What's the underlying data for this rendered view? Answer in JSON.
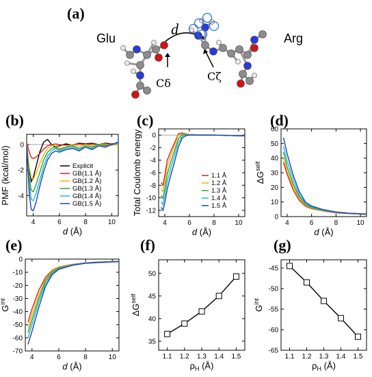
{
  "colors": {
    "explicit": "#000000",
    "r1.1": "#e41a1c",
    "r1.2": "#f0b400",
    "r1.3": "#2ca02c",
    "r1.4": "#17becf",
    "r1.5": "#1f3fbf"
  },
  "panels": {
    "a": {
      "label": "(a)",
      "left_residue": "Glu",
      "right_residue": "Arg",
      "distance_symbol": "d",
      "left_atom": "Cδ",
      "right_atom": "Cζ"
    },
    "b": {
      "label": "(b)"
    },
    "c": {
      "label": "(c)"
    },
    "d": {
      "label": "(d)"
    },
    "e": {
      "label": "(e)"
    },
    "f": {
      "label": "(f)"
    },
    "g": {
      "label": "(g)"
    }
  },
  "chart_data": [
    {
      "id": "b",
      "type": "line",
      "xlabel": "d (Å)",
      "ylabel": "PMF (kcal/mol)",
      "xlim": [
        3.5,
        10.5
      ],
      "ylim": [
        -5.6,
        0.8
      ],
      "xticks": [
        4,
        6,
        8,
        10
      ],
      "yticks": [
        0,
        -2,
        -4
      ],
      "hline": 0,
      "legend_position": "lower-right",
      "series": [
        {
          "name": "Explicit",
          "color_key": "explicit",
          "x": [
            3.5,
            3.7,
            3.85,
            4.0,
            4.2,
            4.5,
            4.8,
            5.1,
            5.4,
            5.7,
            6.0,
            6.5,
            7.0,
            7.5,
            8.0,
            8.5,
            9.0,
            9.5,
            10.0,
            10.5
          ],
          "y": [
            0.0,
            -2.0,
            -2.9,
            -2.6,
            -1.8,
            -0.6,
            0.2,
            0.4,
            0.0,
            -0.2,
            -0.1,
            0.05,
            -0.05,
            0.1,
            0.05,
            0.1,
            0.0,
            0.1,
            0.05,
            0.1
          ]
        },
        {
          "name": "GB(1.1 Å)",
          "color_key": "r1.1",
          "x": [
            3.5,
            3.7,
            3.85,
            4.0,
            4.2,
            4.5,
            4.8,
            5.1,
            5.4,
            5.7,
            6.0,
            6.5,
            7.0,
            7.5,
            8.0,
            8.5,
            9.0,
            9.5,
            10.0,
            10.5
          ],
          "y": [
            0.2,
            -0.6,
            -1.0,
            -1.1,
            -1.0,
            -0.7,
            -0.35,
            -0.1,
            0.0,
            0.05,
            0.0,
            -0.05,
            0.0,
            0.05,
            0.0,
            0.05,
            0.0,
            0.0,
            0.05,
            0.0
          ]
        },
        {
          "name": "GB(1.2 Å)",
          "color_key": "r1.2",
          "x": [
            3.5,
            3.7,
            3.85,
            4.0,
            4.2,
            4.5,
            4.8,
            5.1,
            5.4,
            5.7,
            6.0,
            6.5,
            7.0,
            7.5,
            8.0,
            8.5,
            9.0,
            9.5,
            10.0,
            10.5
          ],
          "y": [
            0.1,
            -1.8,
            -2.6,
            -2.7,
            -2.3,
            -1.5,
            -0.8,
            -0.3,
            -0.1,
            0.0,
            -0.3,
            -0.2,
            0.0,
            -0.15,
            0.0,
            -0.1,
            0.0,
            0.05,
            -0.05,
            0.0
          ]
        },
        {
          "name": "GB(1.3 Å)",
          "color_key": "r1.3",
          "x": [
            3.5,
            3.7,
            3.85,
            4.0,
            4.2,
            4.5,
            4.8,
            5.1,
            5.4,
            5.7,
            6.0,
            6.5,
            7.0,
            7.5,
            8.0,
            8.5,
            9.0,
            9.5,
            10.0,
            10.5
          ],
          "y": [
            0.0,
            -2.6,
            -3.6,
            -3.7,
            -3.2,
            -2.2,
            -1.2,
            -0.6,
            -0.3,
            -0.2,
            -0.4,
            -0.2,
            -0.1,
            -0.3,
            -0.1,
            -0.2,
            0.0,
            -0.1,
            0.0,
            0.1
          ]
        },
        {
          "name": "GB(1.4 Å)",
          "color_key": "r1.4",
          "x": [
            3.5,
            3.7,
            3.85,
            4.0,
            4.2,
            4.5,
            4.8,
            5.1,
            5.4,
            5.7,
            6.0,
            6.5,
            7.0,
            7.5,
            8.0,
            8.5,
            9.0,
            9.5,
            10.0,
            10.5
          ],
          "y": [
            0.0,
            -3.2,
            -4.3,
            -4.4,
            -3.9,
            -2.8,
            -1.7,
            -0.9,
            -0.5,
            -0.3,
            -0.5,
            -0.3,
            -0.2,
            -0.4,
            -0.2,
            -0.3,
            -0.1,
            -0.2,
            0.0,
            0.1
          ]
        },
        {
          "name": "GB(1.5 Å)",
          "color_key": "r1.5",
          "x": [
            3.5,
            3.7,
            3.85,
            4.0,
            4.2,
            4.5,
            4.8,
            5.1,
            5.4,
            5.7,
            6.0,
            6.5,
            7.0,
            7.5,
            8.0,
            8.5,
            9.0,
            9.5,
            10.0,
            10.5
          ],
          "y": [
            0.0,
            -3.9,
            -5.1,
            -5.2,
            -4.6,
            -3.3,
            -2.1,
            -1.2,
            -0.7,
            -0.5,
            -0.6,
            -0.4,
            -0.3,
            -0.5,
            -0.2,
            -0.4,
            -0.1,
            -0.2,
            0.0,
            0.2
          ]
        }
      ]
    },
    {
      "id": "c",
      "type": "line",
      "xlabel": "d (Å)",
      "ylabel": "Total Coulomb energy",
      "xlim": [
        3.5,
        10.5
      ],
      "ylim": [
        -13,
        1
      ],
      "xticks": [
        4,
        6,
        8,
        10
      ],
      "yticks": [
        0,
        -2,
        -4,
        -6,
        -8,
        -10,
        -12
      ],
      "hline": 0,
      "legend_position": "lower-right",
      "series": [
        {
          "name": "1.1 Å",
          "color_key": "r1.1",
          "x": [
            3.7,
            3.85,
            4.0,
            4.2,
            4.5,
            4.8,
            5.1,
            5.4,
            5.7,
            6.0,
            7.0,
            8.0,
            9.0,
            10.0,
            10.5
          ],
          "y": [
            -7.6,
            -8.0,
            -6.4,
            -4.0,
            -2.5,
            -1.2,
            0.2,
            0.35,
            0.2,
            0.1,
            0.0,
            0.0,
            -0.05,
            -0.1,
            -0.1
          ]
        },
        {
          "name": "1.2 Å",
          "color_key": "r1.2",
          "x": [
            3.7,
            3.85,
            4.0,
            4.2,
            4.5,
            4.8,
            5.1,
            5.4,
            5.7,
            6.0,
            7.0,
            8.0,
            9.0,
            10.0,
            10.5
          ],
          "y": [
            -8.6,
            -9.0,
            -7.4,
            -5.0,
            -3.2,
            -1.6,
            0.0,
            0.25,
            0.15,
            0.1,
            0.0,
            0.0,
            -0.05,
            -0.1,
            -0.1
          ]
        },
        {
          "name": "1.3 Å",
          "color_key": "r1.3",
          "x": [
            3.7,
            3.85,
            4.0,
            4.2,
            4.5,
            4.8,
            5.1,
            5.4,
            5.7,
            6.0,
            7.0,
            8.0,
            9.0,
            10.0,
            10.5
          ],
          "y": [
            -9.6,
            -10.1,
            -8.6,
            -6.2,
            -4.2,
            -2.4,
            -0.6,
            0.1,
            0.1,
            0.05,
            0.0,
            0.0,
            -0.05,
            -0.1,
            -0.1
          ]
        },
        {
          "name": "1.4 Å",
          "color_key": "r1.4",
          "x": [
            3.7,
            3.85,
            4.0,
            4.2,
            4.5,
            4.8,
            5.1,
            5.4,
            5.7,
            6.0,
            7.0,
            8.0,
            9.0,
            10.0,
            10.5
          ],
          "y": [
            -10.6,
            -11.1,
            -9.7,
            -7.4,
            -5.2,
            -3.2,
            -1.2,
            -0.2,
            0.0,
            0.0,
            0.0,
            0.0,
            -0.05,
            -0.1,
            -0.1
          ]
        },
        {
          "name": "1.5 Å",
          "color_key": "r1.5",
          "x": [
            3.7,
            3.85,
            4.0,
            4.2,
            4.5,
            4.8,
            5.1,
            5.4,
            5.7,
            6.0,
            7.0,
            8.0,
            9.0,
            10.0,
            10.5
          ],
          "y": [
            -11.5,
            -12.0,
            -10.8,
            -8.6,
            -6.3,
            -4.2,
            -1.9,
            -0.5,
            -0.1,
            0.0,
            0.0,
            0.0,
            -0.05,
            -0.1,
            -0.1
          ]
        }
      ]
    },
    {
      "id": "d",
      "type": "line",
      "xlabel": "d (Å)",
      "ylabel": "ΔG^self",
      "xlim": [
        3.5,
        10.5
      ],
      "ylim": [
        0,
        60
      ],
      "xticks": [
        4,
        6,
        8,
        10
      ],
      "yticks": [
        0,
        10,
        20,
        30,
        40,
        50,
        60
      ],
      "series": [
        {
          "name": "1.1 Å",
          "color_key": "r1.1",
          "x": [
            3.7,
            4.0,
            4.5,
            5.0,
            5.5,
            6.0,
            7.0,
            8.0,
            9.0,
            10.0,
            10.5
          ],
          "y": [
            37.0,
            29.0,
            18.0,
            11.0,
            7.0,
            5.5,
            3.8,
            2.6,
            2.0,
            1.6,
            1.4
          ]
        },
        {
          "name": "1.2 Å",
          "color_key": "r1.2",
          "x": [
            3.7,
            4.0,
            4.5,
            5.0,
            5.5,
            6.0,
            7.0,
            8.0,
            9.0,
            10.0,
            10.5
          ],
          "y": [
            40.0,
            31.0,
            20.0,
            12.0,
            7.5,
            5.8,
            4.0,
            2.8,
            2.1,
            1.7,
            1.5
          ]
        },
        {
          "name": "1.3 Å",
          "color_key": "r1.3",
          "x": [
            3.7,
            4.0,
            4.5,
            5.0,
            5.5,
            6.0,
            7.0,
            8.0,
            9.0,
            10.0,
            10.5
          ],
          "y": [
            44.0,
            34.0,
            22.0,
            13.5,
            8.2,
            6.2,
            4.2,
            2.9,
            2.2,
            1.8,
            1.6
          ]
        },
        {
          "name": "1.4 Å",
          "color_key": "r1.4",
          "x": [
            3.7,
            4.0,
            4.5,
            5.0,
            5.5,
            6.0,
            7.0,
            8.0,
            9.0,
            10.0,
            10.5
          ],
          "y": [
            48.0,
            38.0,
            25.0,
            15.0,
            9.0,
            6.6,
            4.4,
            3.0,
            2.3,
            1.9,
            1.7
          ]
        },
        {
          "name": "1.5 Å",
          "color_key": "r1.5",
          "x": [
            3.7,
            4.0,
            4.5,
            5.0,
            5.5,
            6.0,
            7.0,
            8.0,
            9.0,
            10.0,
            10.5
          ],
          "y": [
            54.0,
            43.0,
            28.0,
            17.0,
            10.0,
            7.2,
            4.7,
            3.2,
            2.4,
            2.0,
            1.8
          ]
        }
      ]
    },
    {
      "id": "e",
      "type": "line",
      "xlabel": "d (Å)",
      "ylabel": "G^int",
      "xlim": [
        3.5,
        10.5
      ],
      "ylim": [
        -70,
        0
      ],
      "xticks": [
        4,
        6,
        8,
        10
      ],
      "yticks": [
        0,
        -10,
        -20,
        -30,
        -40,
        -50,
        -60,
        -70
      ],
      "series": [
        {
          "name": "1.1 Å",
          "color_key": "r1.1",
          "x": [
            3.7,
            4.0,
            4.5,
            5.0,
            5.5,
            6.0,
            7.0,
            8.0,
            9.0,
            10.0,
            10.5
          ],
          "y": [
            -48.0,
            -38.0,
            -24.0,
            -14.0,
            -8.5,
            -6.0,
            -4.0,
            -2.8,
            -2.2,
            -1.8,
            -1.6
          ]
        },
        {
          "name": "1.2 Å",
          "color_key": "r1.2",
          "x": [
            3.7,
            4.0,
            4.5,
            5.0,
            5.5,
            6.0,
            7.0,
            8.0,
            9.0,
            10.0,
            10.5
          ],
          "y": [
            -52.0,
            -42.0,
            -27.0,
            -15.5,
            -9.0,
            -6.3,
            -4.2,
            -2.9,
            -2.3,
            -1.9,
            -1.7
          ]
        },
        {
          "name": "1.3 Å",
          "color_key": "r1.3",
          "x": [
            3.7,
            4.0,
            4.5,
            5.0,
            5.5,
            6.0,
            7.0,
            8.0,
            9.0,
            10.0,
            10.5
          ],
          "y": [
            -56.0,
            -46.0,
            -30.0,
            -17.0,
            -10.0,
            -6.8,
            -4.4,
            -3.0,
            -2.4,
            -2.0,
            -1.8
          ]
        },
        {
          "name": "1.4 Å",
          "color_key": "r1.4",
          "x": [
            3.7,
            4.0,
            4.5,
            5.0,
            5.5,
            6.0,
            7.0,
            8.0,
            9.0,
            10.0,
            10.5
          ],
          "y": [
            -60.0,
            -50.0,
            -33.0,
            -19.0,
            -11.0,
            -7.3,
            -4.6,
            -3.1,
            -2.5,
            -2.1,
            -1.9
          ]
        },
        {
          "name": "1.5 Å",
          "color_key": "r1.5",
          "x": [
            3.7,
            4.0,
            4.5,
            5.0,
            5.5,
            6.0,
            7.0,
            8.0,
            9.0,
            10.0,
            10.5
          ],
          "y": [
            -65.0,
            -55.0,
            -37.0,
            -21.0,
            -12.0,
            -7.8,
            -4.8,
            -3.2,
            -2.6,
            -2.2,
            -2.0
          ]
        }
      ]
    },
    {
      "id": "f",
      "type": "line",
      "marker": "open-square",
      "xlabel": "ρH (Å)",
      "ylabel": "ΔG^self",
      "xlim": [
        1.05,
        1.55
      ],
      "ylim": [
        33,
        53
      ],
      "xticks": [
        1.1,
        1.2,
        1.3,
        1.4,
        1.5
      ],
      "yticks": [
        35,
        40,
        45,
        50
      ],
      "series": [
        {
          "color_key": "explicit",
          "x": [
            1.1,
            1.2,
            1.3,
            1.4,
            1.5
          ],
          "y": [
            36.6,
            38.9,
            41.6,
            45.0,
            49.3
          ]
        }
      ]
    },
    {
      "id": "g",
      "type": "line",
      "marker": "open-square",
      "xlabel": "ρH (Å)",
      "ylabel": "G^int",
      "xlim": [
        1.05,
        1.55
      ],
      "ylim": [
        -65,
        -43
      ],
      "xticks": [
        1.1,
        1.2,
        1.3,
        1.4,
        1.5
      ],
      "yticks": [
        -45,
        -50,
        -55,
        -60,
        -65
      ],
      "series": [
        {
          "color_key": "explicit",
          "x": [
            1.1,
            1.2,
            1.3,
            1.4,
            1.5
          ],
          "y": [
            -44.5,
            -48.5,
            -53.0,
            -57.2,
            -61.7
          ]
        }
      ]
    }
  ]
}
